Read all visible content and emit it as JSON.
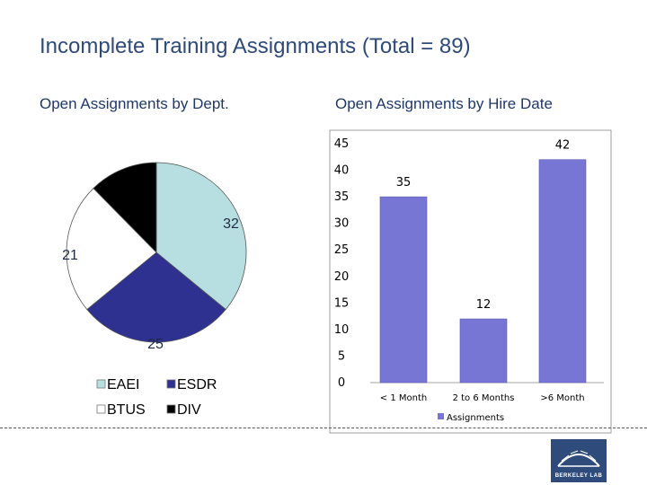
{
  "title": "Incomplete Training Assignments (Total = 89)",
  "pie_subtitle": "Open Assignments by Dept.",
  "bar_subtitle": "Open Assignments by Hire Date",
  "logo_text": "BERKELEY LAB",
  "colors": {
    "EAEI": "#b7dfe1",
    "ESDR": "#2e318f",
    "BTUS": "#ffffff",
    "DIV": "#000000",
    "bar": "#7876d4",
    "title": "#2e4a78"
  },
  "chart_data": [
    {
      "type": "pie",
      "title": "Open Assignments by Dept.",
      "slices": [
        {
          "name": "EAEI",
          "value": 32,
          "label": "32",
          "color": "#b7dfe1"
        },
        {
          "name": "ESDR",
          "value": 25,
          "label": "25",
          "color": "#2e318f"
        },
        {
          "name": "BTUS",
          "value": 21,
          "label": "21",
          "color": "#ffffff"
        },
        {
          "name": "DIV",
          "value": 11,
          "label": "",
          "color": "#000000"
        }
      ],
      "legend": [
        "EAEI",
        "ESDR",
        "BTUS",
        "DIV"
      ],
      "legend_position": "bottom"
    },
    {
      "type": "bar",
      "title": "Open Assignments by Hire Date",
      "categories": [
        "< 1 Month",
        "2 to 6 Months",
        ">6 Month"
      ],
      "series": [
        {
          "name": "Assignments",
          "values": [
            35,
            12,
            42
          ]
        }
      ],
      "ylim": [
        0,
        45
      ],
      "yticks": [
        "0",
        "5",
        "10",
        "15",
        "20",
        "25",
        "30",
        "35",
        "40",
        "45"
      ],
      "grid": false,
      "legend_position": "bottom"
    }
  ]
}
